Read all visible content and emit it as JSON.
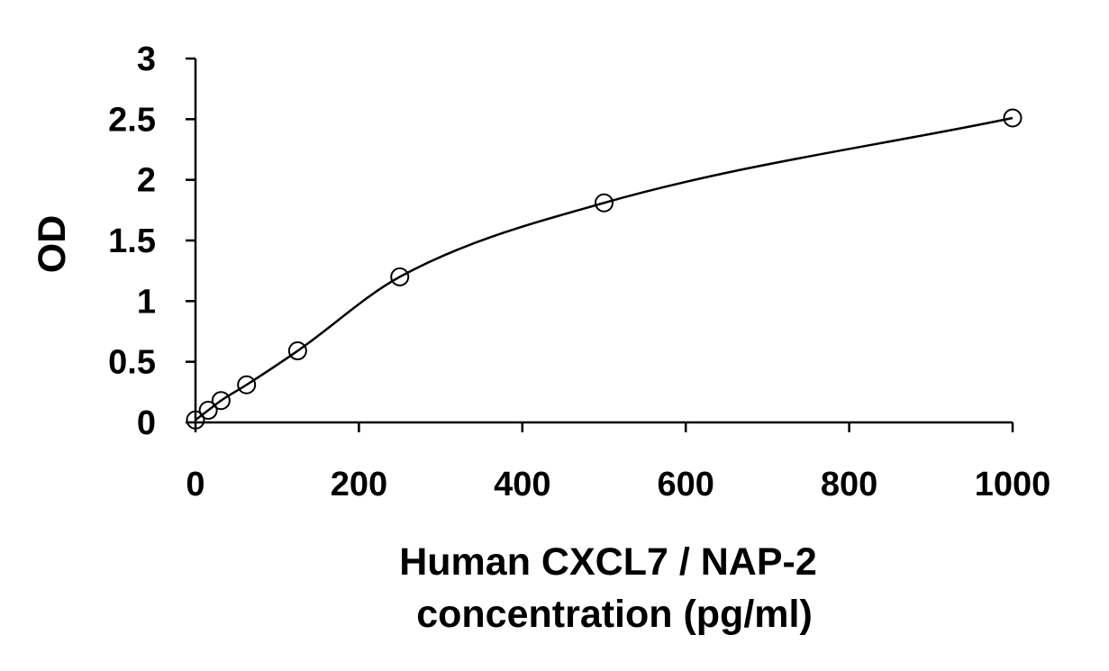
{
  "chart_data": {
    "type": "scatter",
    "xlabel_lines": [
      "Human CXCL7 / NAP-2",
      "concentration (pg/ml)"
    ],
    "ylabel": "OD",
    "xlim": [
      0,
      1000
    ],
    "ylim": [
      0,
      3
    ],
    "x_ticks": [
      0,
      200,
      400,
      600,
      800,
      1000
    ],
    "x_tick_labels": [
      "0",
      "200",
      "400",
      "600",
      "800",
      "1000"
    ],
    "y_ticks": [
      0,
      0.5,
      1,
      1.5,
      2,
      2.5,
      3
    ],
    "y_tick_labels": [
      "0",
      "0.5",
      "1",
      "1.5",
      "2",
      "2.5",
      "3"
    ],
    "grid": false,
    "series": [
      {
        "marker": "open-circle",
        "fit": "smooth-curve",
        "x": [
          0,
          15.6,
          31.25,
          62.5,
          125,
          250,
          500,
          1000
        ],
        "y": [
          0.02,
          0.1,
          0.18,
          0.31,
          0.59,
          1.2,
          1.81,
          2.51
        ]
      }
    ],
    "colors": {
      "line": "#000000",
      "marker_stroke": "#000000",
      "marker_fill": "#ffffff"
    }
  }
}
